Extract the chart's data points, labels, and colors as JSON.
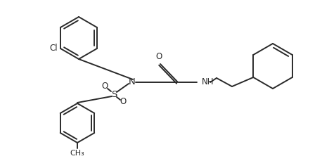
{
  "background_color": "#ffffff",
  "line_color": "#2a2a2a",
  "line_width": 1.4,
  "font_size": 8.5,
  "figsize": [
    4.58,
    2.29
  ],
  "dpi": 100,
  "xlim": [
    0,
    458
  ],
  "ylim": [
    0,
    229
  ]
}
